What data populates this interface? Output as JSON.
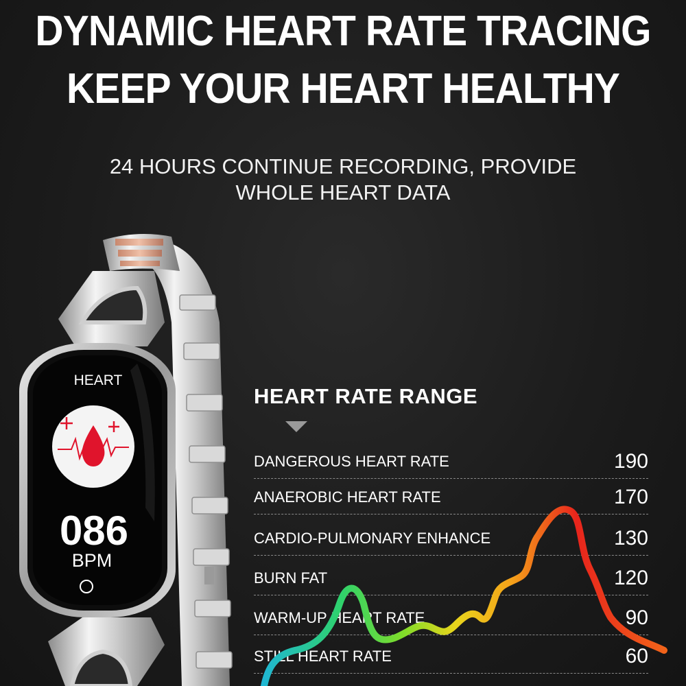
{
  "headline": {
    "line1": "DYNAMIC HEART RATE TRACING",
    "line2": "KEEP YOUR HEART HEALTHY"
  },
  "subheadline": {
    "line1": "24 HOURS CONTINUE RECORDING, PROVIDE",
    "line2": "WHOLE HEART DATA"
  },
  "watch_screen": {
    "mode_label": "HEART",
    "bpm_value": "086",
    "bpm_unit": "BPM",
    "icon": "heart-blood-drop-icon"
  },
  "heart_rate_range": {
    "title": "HEART RATE RANGE",
    "zones": [
      {
        "label": "DANGEROUS HEART RATE",
        "value": "190"
      },
      {
        "label": "ANAEROBIC HEART RATE",
        "value": "170"
      },
      {
        "label": "CARDIO-PULMONARY ENHANCE",
        "value": "130"
      },
      {
        "label": "BURN FAT",
        "value": "120"
      },
      {
        "label": "WARM-UP HEART RATE",
        "value": "90"
      },
      {
        "label": "STILL HEART RATE",
        "value": "60"
      }
    ],
    "curve_colors": [
      "#1fb6d6",
      "#2fd26b",
      "#7fdc2a",
      "#e8d51c",
      "#f5a21a",
      "#f1641a",
      "#e8241c"
    ]
  }
}
